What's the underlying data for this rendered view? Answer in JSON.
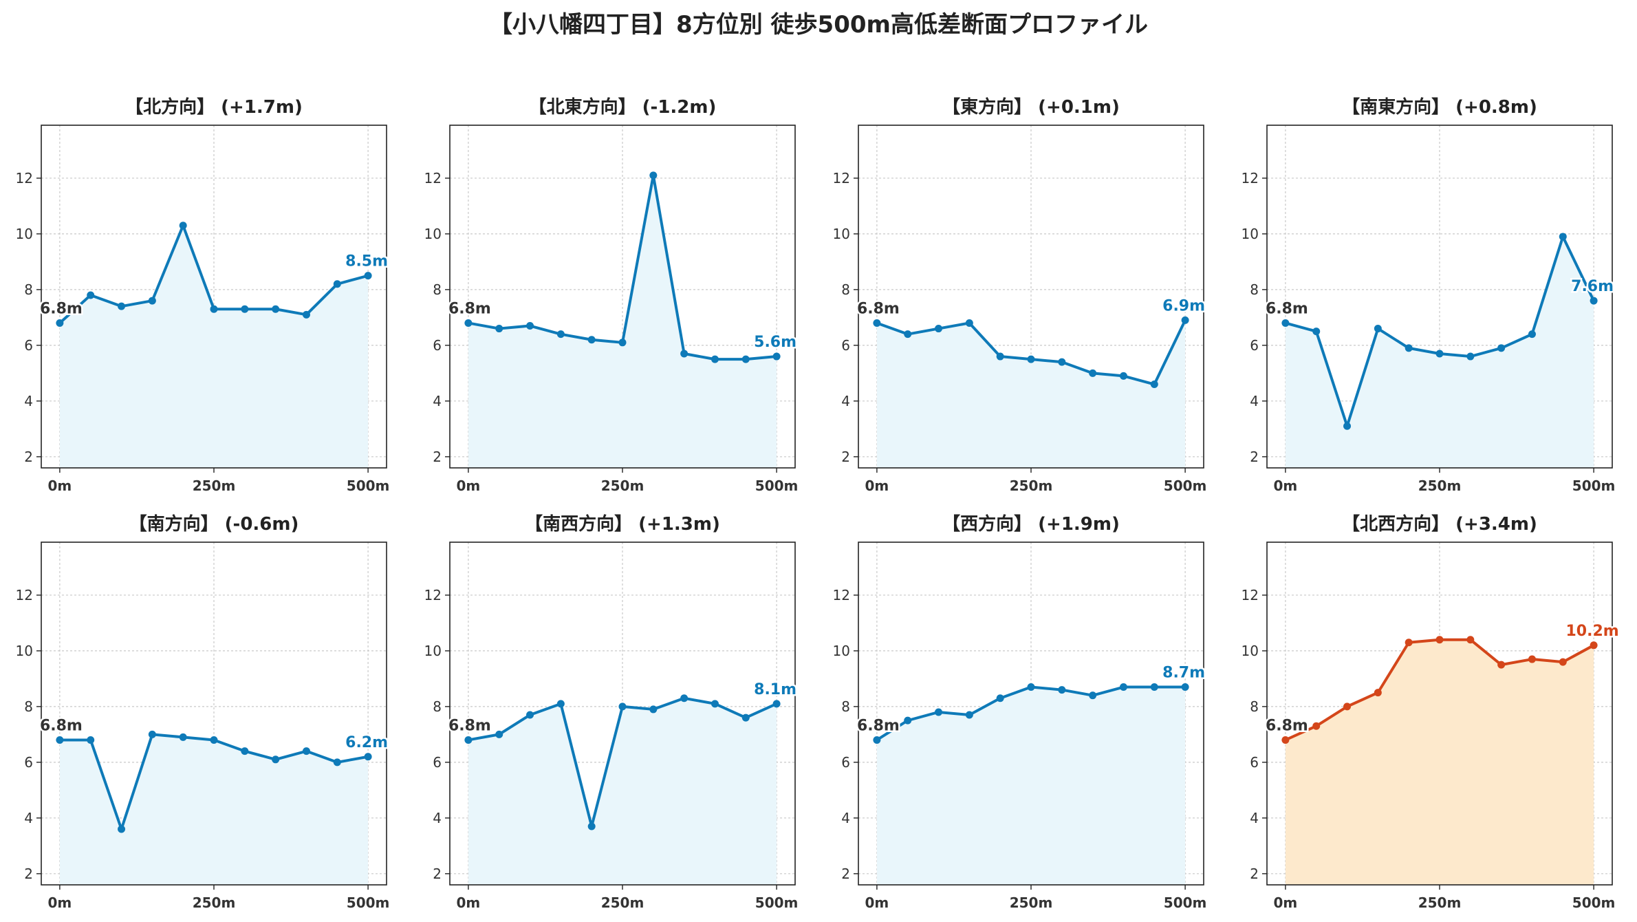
{
  "title": "【小八幡四丁目】8方位別 徒歩500m高低差断面プロファイル",
  "colors": {
    "line": "#0e7ab8",
    "fill": "#e9f6fb",
    "highlight_line": "#d4461a",
    "highlight_fill": "#fde9cc",
    "start_label": "#333333",
    "grid": "#c8c8c8"
  },
  "chart_data": [
    {
      "type": "area",
      "title": "【北方向】 (+1.7m)",
      "x": [
        0,
        50,
        100,
        150,
        200,
        250,
        300,
        350,
        400,
        450,
        500
      ],
      "values": [
        6.8,
        7.8,
        7.4,
        7.6,
        10.3,
        7.3,
        7.3,
        7.3,
        7.1,
        8.2,
        8.5
      ],
      "start_label": "6.8m",
      "end_label": "8.5m",
      "xtick_labels": [
        "0m",
        "250m",
        "500m"
      ],
      "yticks": [
        2,
        4,
        6,
        8,
        10,
        12
      ],
      "ylim": [
        1.6,
        13.9
      ],
      "xlim": [
        -30,
        530
      ],
      "grid": true,
      "highlight": false
    },
    {
      "type": "area",
      "title": "【北東方向】 (-1.2m)",
      "x": [
        0,
        50,
        100,
        150,
        200,
        250,
        300,
        350,
        400,
        450,
        500
      ],
      "values": [
        6.8,
        6.6,
        6.7,
        6.4,
        6.2,
        6.1,
        12.1,
        5.7,
        5.5,
        5.5,
        5.6
      ],
      "start_label": "6.8m",
      "end_label": "5.6m",
      "xtick_labels": [
        "0m",
        "250m",
        "500m"
      ],
      "yticks": [
        2,
        4,
        6,
        8,
        10,
        12
      ],
      "ylim": [
        1.6,
        13.9
      ],
      "xlim": [
        -30,
        530
      ],
      "grid": true,
      "highlight": false
    },
    {
      "type": "area",
      "title": "【東方向】 (+0.1m)",
      "x": [
        0,
        50,
        100,
        150,
        200,
        250,
        300,
        350,
        400,
        450,
        500
      ],
      "values": [
        6.8,
        6.4,
        6.6,
        6.8,
        5.6,
        5.5,
        5.4,
        5.0,
        4.9,
        4.6,
        6.9
      ],
      "start_label": "6.8m",
      "end_label": "6.9m",
      "xtick_labels": [
        "0m",
        "250m",
        "500m"
      ],
      "yticks": [
        2,
        4,
        6,
        8,
        10,
        12
      ],
      "ylim": [
        1.6,
        13.9
      ],
      "xlim": [
        -30,
        530
      ],
      "grid": true,
      "highlight": false
    },
    {
      "type": "area",
      "title": "【南東方向】 (+0.8m)",
      "x": [
        0,
        50,
        100,
        150,
        200,
        250,
        300,
        350,
        400,
        450,
        500
      ],
      "values": [
        6.8,
        6.5,
        3.1,
        6.6,
        5.9,
        5.7,
        5.6,
        5.9,
        6.4,
        9.9,
        7.6
      ],
      "start_label": "6.8m",
      "end_label": "7.6m",
      "xtick_labels": [
        "0m",
        "250m",
        "500m"
      ],
      "yticks": [
        2,
        4,
        6,
        8,
        10,
        12
      ],
      "ylim": [
        1.6,
        13.9
      ],
      "xlim": [
        -30,
        530
      ],
      "grid": true,
      "highlight": false
    },
    {
      "type": "area",
      "title": "【南方向】 (-0.6m)",
      "x": [
        0,
        50,
        100,
        150,
        200,
        250,
        300,
        350,
        400,
        450,
        500
      ],
      "values": [
        6.8,
        6.8,
        3.6,
        7.0,
        6.9,
        6.8,
        6.4,
        6.1,
        6.4,
        6.0,
        6.2
      ],
      "start_label": "6.8m",
      "end_label": "6.2m",
      "xtick_labels": [
        "0m",
        "250m",
        "500m"
      ],
      "yticks": [
        2,
        4,
        6,
        8,
        10,
        12
      ],
      "ylim": [
        1.6,
        13.9
      ],
      "xlim": [
        -30,
        530
      ],
      "grid": true,
      "highlight": false
    },
    {
      "type": "area",
      "title": "【南西方向】 (+1.3m)",
      "x": [
        0,
        50,
        100,
        150,
        200,
        250,
        300,
        350,
        400,
        450,
        500
      ],
      "values": [
        6.8,
        7.0,
        7.7,
        8.1,
        3.7,
        8.0,
        7.9,
        8.3,
        8.1,
        7.6,
        8.1
      ],
      "start_label": "6.8m",
      "end_label": "8.1m",
      "xtick_labels": [
        "0m",
        "250m",
        "500m"
      ],
      "yticks": [
        2,
        4,
        6,
        8,
        10,
        12
      ],
      "ylim": [
        1.6,
        13.9
      ],
      "xlim": [
        -30,
        530
      ],
      "grid": true,
      "highlight": false
    },
    {
      "type": "area",
      "title": "【西方向】 (+1.9m)",
      "x": [
        0,
        50,
        100,
        150,
        200,
        250,
        300,
        350,
        400,
        450,
        500
      ],
      "values": [
        6.8,
        7.5,
        7.8,
        7.7,
        8.3,
        8.7,
        8.6,
        8.4,
        8.7,
        8.7,
        8.7
      ],
      "start_label": "6.8m",
      "end_label": "8.7m",
      "xtick_labels": [
        "0m",
        "250m",
        "500m"
      ],
      "yticks": [
        2,
        4,
        6,
        8,
        10,
        12
      ],
      "ylim": [
        1.6,
        13.9
      ],
      "xlim": [
        -30,
        530
      ],
      "grid": true,
      "highlight": false
    },
    {
      "type": "area",
      "title": "【北西方向】 (+3.4m)",
      "x": [
        0,
        50,
        100,
        150,
        200,
        250,
        300,
        350,
        400,
        450,
        500
      ],
      "values": [
        6.8,
        7.3,
        8.0,
        8.5,
        10.3,
        10.4,
        10.4,
        9.5,
        9.7,
        9.6,
        10.2
      ],
      "start_label": "6.8m",
      "end_label": "10.2m",
      "xtick_labels": [
        "0m",
        "250m",
        "500m"
      ],
      "yticks": [
        2,
        4,
        6,
        8,
        10,
        12
      ],
      "ylim": [
        1.6,
        13.9
      ],
      "xlim": [
        -30,
        530
      ],
      "grid": true,
      "highlight": true
    }
  ]
}
